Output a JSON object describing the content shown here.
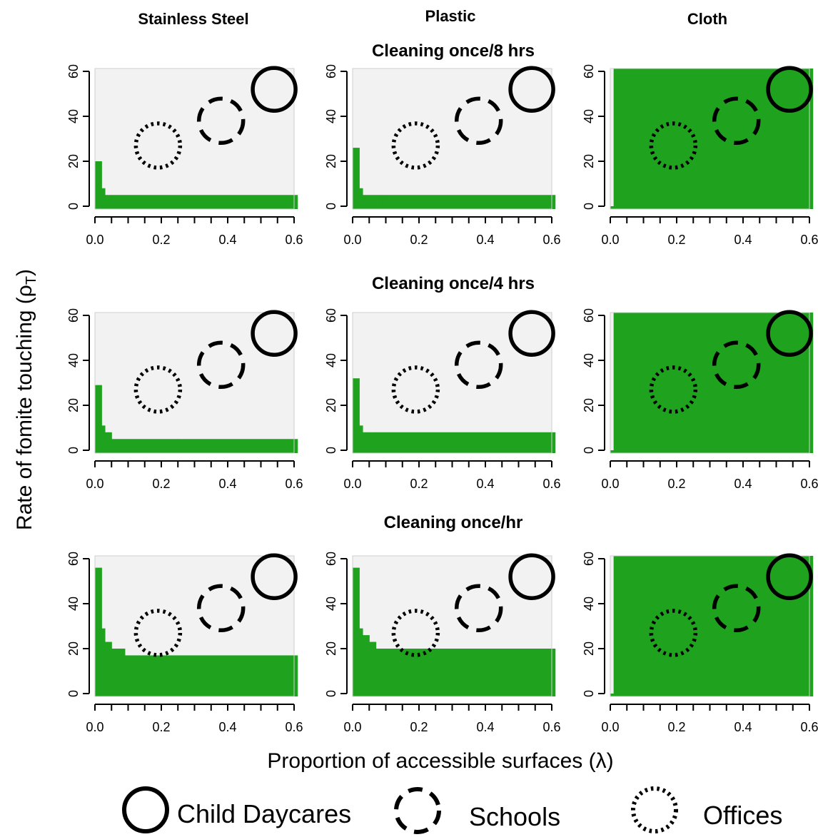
{
  "chart_data": {
    "type": "area",
    "description_free": true,
    "columns": [
      "Stainless Steel",
      "Plastic",
      "Cloth"
    ],
    "rows": [
      "Cleaning once/8 hrs",
      "Cleaning once/4 hrs",
      "Cleaning once/hr"
    ],
    "xlabel": "Proportion of accessible surfaces (λ)",
    "ylabel": "Rate of fomite touching (ρ",
    "ylabel_sub": "T",
    "ylabel_close": ")",
    "xlim": [
      0,
      0.6
    ],
    "ylim": [
      0,
      60
    ],
    "xticks": [
      0.0,
      0.2,
      0.4,
      0.6
    ],
    "xtick_labels": [
      "0.0",
      "0.2",
      "0.4",
      "0.6"
    ],
    "yticks": [
      0,
      20,
      40,
      60
    ],
    "ytick_labels": [
      "0",
      "20",
      "40",
      "60"
    ],
    "colors": {
      "risk": "#1fa31f",
      "safe": "#f2f2f2"
    },
    "legend": [
      {
        "label": "Child Daycares",
        "style": "solid"
      },
      {
        "label": "Schools",
        "style": "dashed"
      },
      {
        "label": "Offices",
        "style": "dotted"
      }
    ],
    "venues": [
      {
        "name": "Child Daycares",
        "style": "solid",
        "x": 0.54,
        "y": 52
      },
      {
        "name": "Schools",
        "style": "dashed",
        "x": 0.38,
        "y": 38
      },
      {
        "name": "Offices",
        "style": "dotted",
        "x": 0.19,
        "y": 27
      }
    ],
    "panels": [
      {
        "row": 0,
        "col": 0,
        "steps": [
          [
            0.02,
            20
          ],
          [
            0.03,
            8
          ],
          [
            0.05,
            5
          ],
          [
            0.61,
            5
          ]
        ]
      },
      {
        "row": 0,
        "col": 1,
        "steps": [
          [
            0.02,
            26
          ],
          [
            0.03,
            8
          ],
          [
            0.09,
            5
          ],
          [
            0.61,
            5
          ]
        ]
      },
      {
        "row": 0,
        "col": 2,
        "steps": [
          [
            0.01,
            0
          ],
          [
            0.61,
            62
          ]
        ]
      },
      {
        "row": 1,
        "col": 0,
        "steps": [
          [
            0.02,
            29
          ],
          [
            0.03,
            11
          ],
          [
            0.05,
            8
          ],
          [
            0.25,
            5
          ],
          [
            0.61,
            5
          ]
        ]
      },
      {
        "row": 1,
        "col": 1,
        "steps": [
          [
            0.02,
            32
          ],
          [
            0.03,
            11
          ],
          [
            0.07,
            8
          ],
          [
            0.61,
            8
          ]
        ]
      },
      {
        "row": 1,
        "col": 2,
        "steps": [
          [
            0.01,
            0
          ],
          [
            0.61,
            62
          ]
        ]
      },
      {
        "row": 2,
        "col": 0,
        "steps": [
          [
            0.02,
            56
          ],
          [
            0.03,
            29
          ],
          [
            0.05,
            23
          ],
          [
            0.09,
            20
          ],
          [
            0.31,
            17
          ],
          [
            0.61,
            17
          ]
        ]
      },
      {
        "row": 2,
        "col": 1,
        "steps": [
          [
            0.02,
            56
          ],
          [
            0.03,
            29
          ],
          [
            0.05,
            26
          ],
          [
            0.07,
            23
          ],
          [
            0.11,
            20
          ],
          [
            0.61,
            20
          ]
        ]
      },
      {
        "row": 2,
        "col": 2,
        "steps": [
          [
            0.01,
            0
          ],
          [
            0.61,
            62
          ]
        ]
      }
    ]
  }
}
